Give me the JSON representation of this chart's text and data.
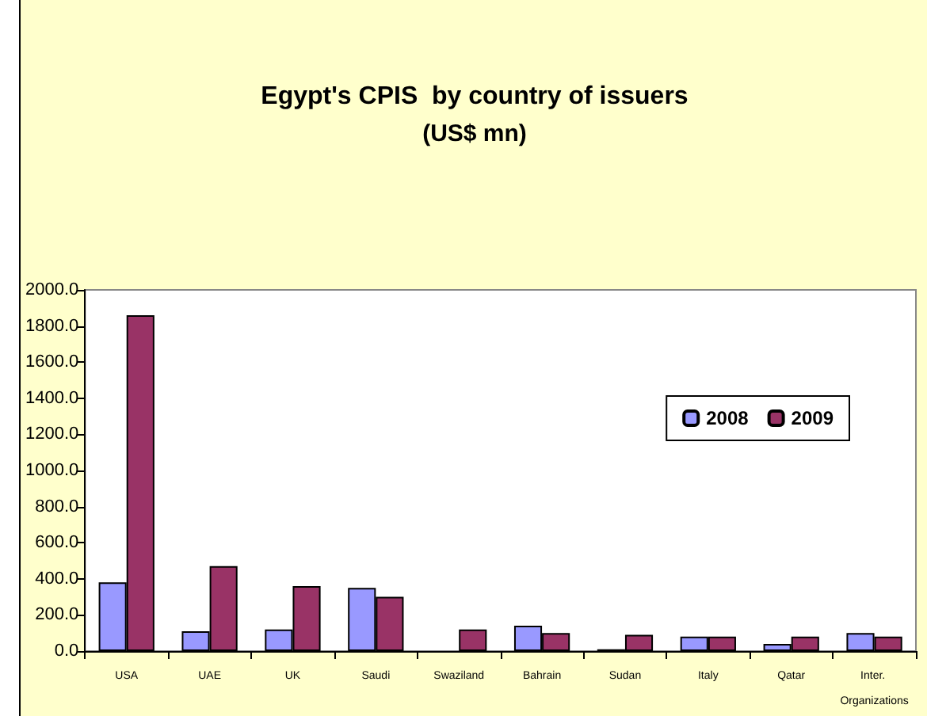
{
  "chart_data": {
    "type": "bar",
    "title": "Egypt's CPIS  by country of issuers",
    "subtitle": "(US$ mn)",
    "categories": [
      "USA",
      "UAE",
      "UK",
      "Saudi",
      "Swaziland",
      "Bahrain",
      "Sudan",
      "Italy",
      "Qatar",
      "Inter. Organizations"
    ],
    "series": [
      {
        "name": "2008",
        "color": "#9999ff",
        "values": [
          380,
          110,
          120,
          350,
          null,
          140,
          10,
          80,
          40,
          100
        ]
      },
      {
        "name": "2009",
        "color": "#993366",
        "values": [
          1860,
          470,
          360,
          300,
          120,
          100,
          90,
          80,
          80,
          80
        ]
      }
    ],
    "ylim": [
      0,
      2000
    ],
    "yticks": [
      {
        "value": 0,
        "label": "0.0"
      },
      {
        "value": 200,
        "label": "200.0"
      },
      {
        "value": 400,
        "label": "400.0"
      },
      {
        "value": 600,
        "label": "600.0"
      },
      {
        "value": 800,
        "label": "800.0"
      },
      {
        "value": 1000,
        "label": "1000.0"
      },
      {
        "value": 1200,
        "label": "1200.0"
      },
      {
        "value": 1400,
        "label": "1400.0"
      },
      {
        "value": 1600,
        "label": "1600.0"
      },
      {
        "value": 1800,
        "label": "1800.0"
      },
      {
        "value": 2000,
        "label": "2000.0"
      }
    ],
    "grid": false,
    "legend": "right"
  }
}
